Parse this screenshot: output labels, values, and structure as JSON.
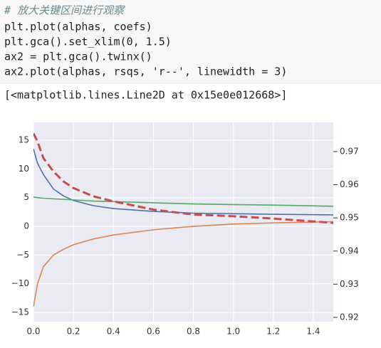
{
  "code": [
    "# 放大关键区间进行观察",
    "plt.plot(alphas, coefs)",
    "plt.gca().set_xlim(0, 1.5)",
    "ax2 = plt.gca().twinx()",
    "ax2.plot(alphas, rsqs, 'r--', linewidth = 3)"
  ],
  "output": "[<matplotlib.lines.Line2D at 0x15e0e012668>]",
  "chart_data": {
    "type": "line",
    "x": [
      0,
      0.02,
      0.05,
      0.1,
      0.15,
      0.2,
      0.3,
      0.4,
      0.6,
      0.8,
      1.0,
      1.2,
      1.5
    ],
    "series": [
      {
        "color": "#4c72b0",
        "values": [
          13.5,
          11,
          9,
          6.5,
          5.3,
          4.5,
          3.6,
          3.1,
          2.6,
          2.3,
          2.2,
          2.1,
          2.0
        ]
      },
      {
        "color": "#55a868",
        "values": [
          5.1,
          5.0,
          4.9,
          4.8,
          4.7,
          4.6,
          4.4,
          4.3,
          4.1,
          3.9,
          3.8,
          3.7,
          3.5
        ]
      },
      {
        "color": "#dd8452",
        "values": [
          -14,
          -10,
          -7,
          -5,
          -4,
          -3.2,
          -2.2,
          -1.5,
          -0.6,
          0,
          0.4,
          0.6,
          0.8
        ]
      },
      {
        "color": "#c44e52",
        "axis": "y2",
        "dash": true,
        "values": [
          0.9755,
          0.973,
          0.968,
          0.964,
          0.961,
          0.959,
          0.9565,
          0.955,
          0.9525,
          0.951,
          0.9505,
          0.9498,
          0.9485
        ]
      }
    ],
    "xlim": [
      0,
      1.5
    ],
    "xticks": [
      {
        "value": 0,
        "label": "0.0"
      },
      {
        "value": 0.2,
        "label": "0.2"
      },
      {
        "value": 0.4,
        "label": "0.4"
      },
      {
        "value": 0.6,
        "label": "0.6"
      },
      {
        "value": 0.8,
        "label": "0.8"
      },
      {
        "value": 1.0,
        "label": "1.0"
      },
      {
        "value": 1.2,
        "label": "1.2"
      },
      {
        "value": 1.4,
        "label": "1.4"
      }
    ],
    "ylim": [
      -16.6,
      18.1
    ],
    "yticks": [
      {
        "value": -15,
        "label": "−15"
      },
      {
        "value": -10,
        "label": "−10"
      },
      {
        "value": -5,
        "label": "−5"
      },
      0,
      5,
      10,
      15
    ],
    "y2lim": [
      0.9187,
      0.9788
    ],
    "y2ticks": [
      0.92,
      0.93,
      0.94,
      0.95,
      0.96,
      0.97
    ],
    "grid": true
  }
}
